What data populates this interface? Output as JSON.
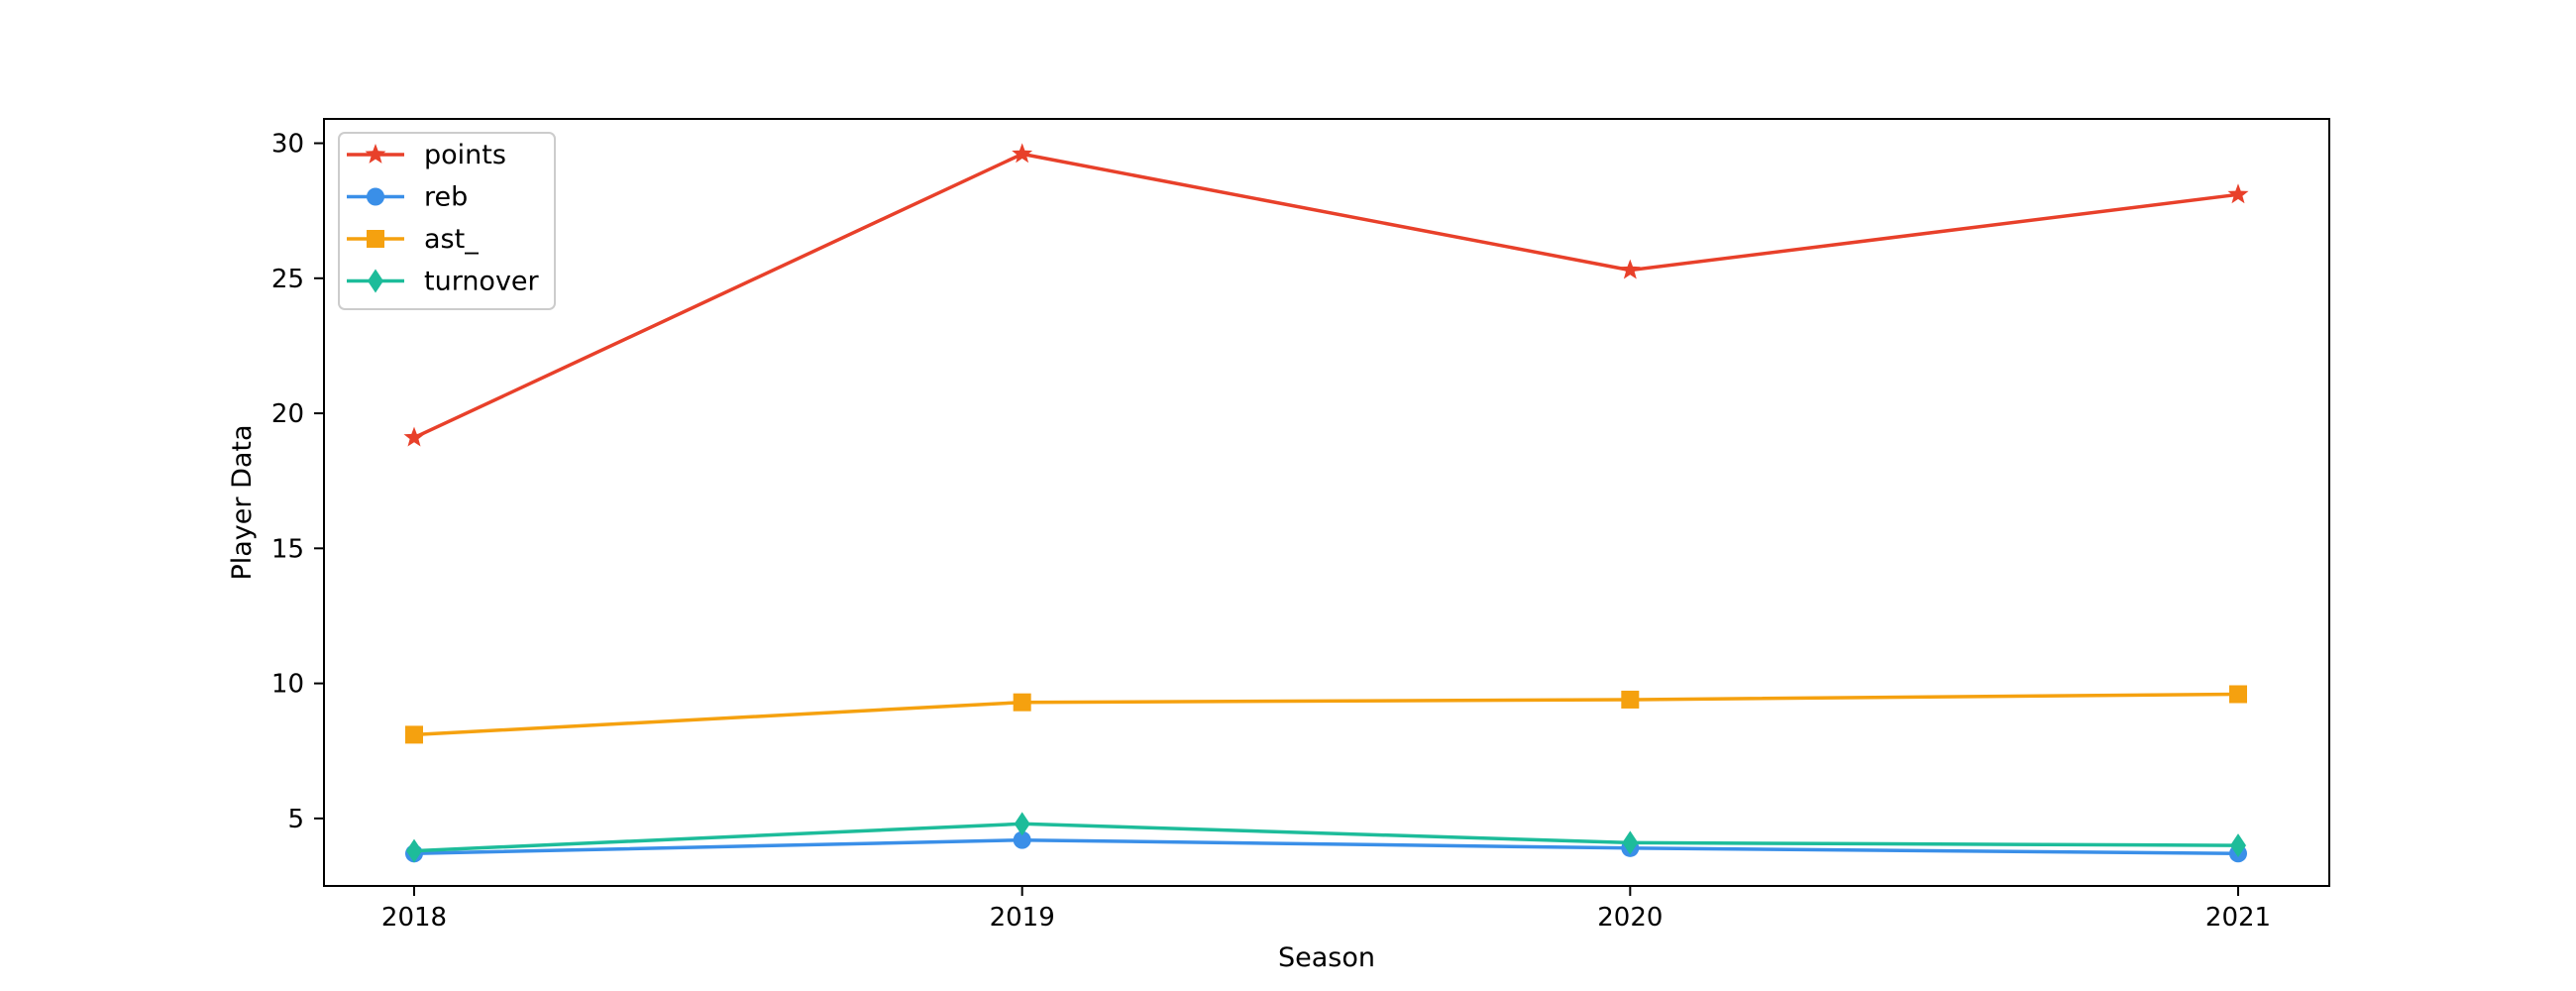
{
  "chart_data": {
    "type": "line",
    "title": "",
    "xlabel": "Season",
    "ylabel": "Player Data",
    "categories": [
      "2018",
      "2019",
      "2020",
      "2021"
    ],
    "x": [
      2018,
      2019,
      2020,
      2021
    ],
    "ylim": [
      2.5,
      30.9
    ],
    "yticks": [
      5,
      10,
      15,
      20,
      25,
      30
    ],
    "grid": false,
    "legend": "upper-left",
    "series": [
      {
        "name": "points",
        "color": "#e8402a",
        "marker": "star",
        "values": [
          19.1,
          29.6,
          25.3,
          28.1
        ]
      },
      {
        "name": "reb",
        "color": "#3a8fe8",
        "marker": "circle",
        "values": [
          3.7,
          4.2,
          3.9,
          3.7
        ]
      },
      {
        "name": "ast_",
        "color": "#f5a10f",
        "marker": "square",
        "values": [
          8.1,
          9.3,
          9.4,
          9.6
        ]
      },
      {
        "name": "turnover",
        "color": "#1dbc9a",
        "marker": "diamond",
        "values": [
          3.8,
          4.8,
          4.1,
          4.0
        ]
      }
    ]
  }
}
